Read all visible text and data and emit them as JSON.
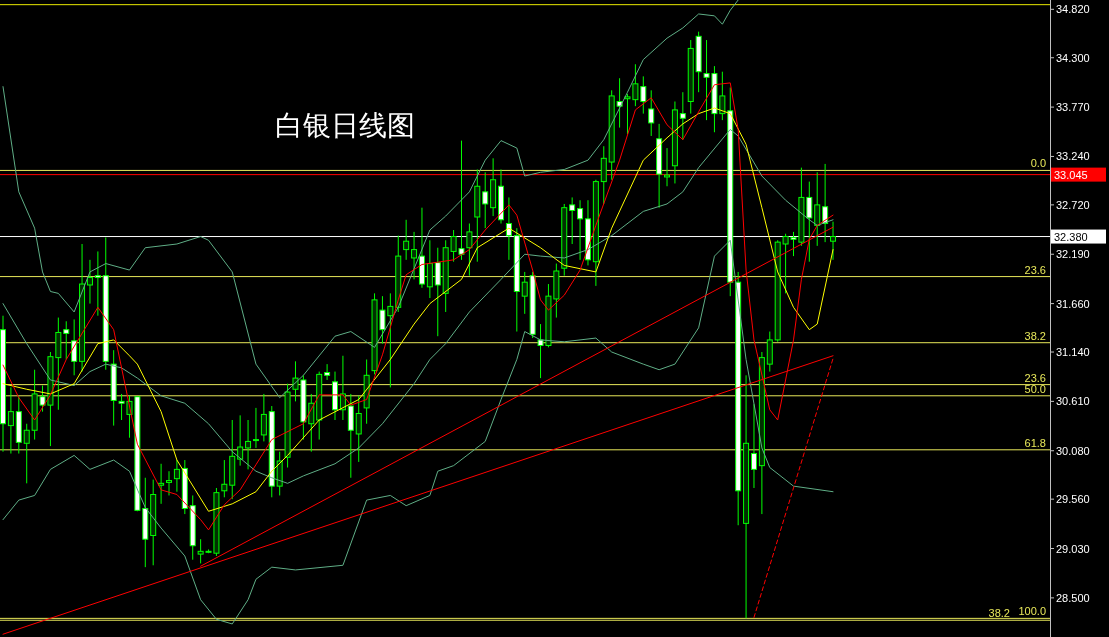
{
  "chart_data": {
    "type": "candlestick",
    "title": "白银日线图",
    "categories": [
      null,
      null,
      null,
      null,
      null,
      null,
      null,
      null,
      null,
      null,
      null,
      null,
      null,
      null,
      null,
      null,
      null,
      null,
      null,
      null,
      null,
      null,
      null,
      null,
      null,
      null,
      null,
      null,
      null,
      null,
      null,
      null,
      null,
      null,
      null,
      null,
      null,
      null,
      null,
      null,
      null,
      null,
      null,
      null,
      null,
      null,
      null,
      null,
      null,
      null,
      null,
      null,
      null,
      null,
      null,
      null,
      null,
      null,
      null,
      null,
      null,
      null,
      null,
      null,
      null,
      null,
      null,
      null,
      null,
      null,
      null,
      null,
      null,
      null,
      null,
      null,
      null,
      null,
      null,
      null,
      null,
      null,
      null,
      null,
      null,
      null,
      null,
      null,
      null,
      null,
      null,
      null,
      null,
      null,
      null,
      null,
      null,
      null,
      null,
      null,
      null,
      null,
      null,
      null,
      null,
      null
    ],
    "ylim": [
      28.08,
      34.92
    ],
    "yticks": [
      {
        "value": 34.82,
        "label": "34.820"
      },
      {
        "value": 34.3,
        "label": "34.300"
      },
      {
        "value": 33.77,
        "label": "33.770"
      },
      {
        "value": 33.24,
        "label": "33.240"
      },
      {
        "value": 32.72,
        "label": "32.720"
      },
      {
        "value": 32.19,
        "label": "32.190"
      },
      {
        "value": 31.66,
        "label": "31.660"
      },
      {
        "value": 31.14,
        "label": "31.140"
      },
      {
        "value": 30.61,
        "label": "30.610"
      },
      {
        "value": 30.08,
        "label": "30.080"
      },
      {
        "value": 29.56,
        "label": "29.560"
      },
      {
        "value": 29.03,
        "label": "29.030"
      },
      {
        "value": 28.5,
        "label": "28.500"
      }
    ],
    "tick_labels": "y",
    "grid": false,
    "series": [
      {
        "color": "#00ff00",
        "ohlc": [
          [
            31.38,
            31.53,
            30.07,
            30.37
          ],
          [
            30.35,
            30.76,
            30.05,
            30.5
          ],
          [
            30.5,
            30.67,
            30.05,
            30.17
          ],
          [
            30.16,
            30.37,
            29.73,
            30.3
          ],
          [
            30.3,
            30.95,
            30.2,
            30.69
          ],
          [
            30.66,
            30.78,
            30.5,
            30.57
          ],
          [
            30.57,
            31.14,
            30.13,
            31.09
          ],
          [
            31.08,
            31.51,
            30.52,
            31.35
          ],
          [
            31.38,
            31.47,
            31.06,
            31.34
          ],
          [
            31.26,
            31.49,
            30.89,
            31.04
          ],
          [
            31.04,
            32.3,
            30.93,
            31.87
          ],
          [
            31.86,
            32.13,
            31.66,
            31.94
          ],
          [
            31.96,
            32.22,
            31.53,
            31.94
          ],
          [
            31.96,
            32.37,
            30.95,
            31.04
          ],
          [
            31.01,
            31.16,
            30.35,
            30.62
          ],
          [
            30.61,
            30.69,
            30.41,
            30.59
          ],
          [
            30.47,
            30.67,
            30.22,
            30.61
          ],
          [
            30.66,
            30.66,
            29.43,
            29.44
          ],
          [
            29.46,
            29.79,
            28.83,
            29.13
          ],
          [
            29.17,
            29.77,
            28.85,
            29.61
          ],
          [
            29.71,
            29.94,
            29.51,
            29.73
          ],
          [
            29.74,
            29.86,
            29.6,
            29.76
          ],
          [
            29.78,
            29.98,
            29.64,
            29.88
          ],
          [
            29.89,
            29.98,
            29.4,
            29.46
          ],
          [
            29.49,
            29.6,
            28.91,
            29.06
          ],
          [
            28.97,
            29.13,
            28.87,
            29.0
          ],
          [
            29.0,
            29.02,
            28.98,
            29.0
          ],
          [
            28.98,
            29.68,
            28.95,
            29.63
          ],
          [
            29.65,
            29.98,
            29.58,
            29.72
          ],
          [
            29.71,
            30.41,
            29.56,
            30.02
          ],
          [
            29.99,
            30.46,
            29.92,
            30.12
          ],
          [
            30.11,
            30.41,
            29.88,
            30.18
          ],
          [
            30.19,
            30.54,
            30.11,
            30.2
          ],
          [
            30.25,
            30.69,
            30.18,
            30.47
          ],
          [
            30.5,
            30.56,
            29.58,
            29.7
          ],
          [
            29.7,
            30.07,
            29.6,
            29.97
          ],
          [
            30.01,
            30.8,
            29.9,
            30.71
          ],
          [
            30.74,
            31.04,
            30.61,
            30.86
          ],
          [
            30.84,
            30.89,
            30.2,
            30.39
          ],
          [
            30.37,
            30.69,
            30.07,
            30.59
          ],
          [
            30.41,
            30.93,
            30.2,
            30.9
          ],
          [
            30.92,
            31.01,
            30.84,
            30.89
          ],
          [
            30.82,
            30.93,
            30.41,
            30.52
          ],
          [
            30.52,
            31.1,
            30.41,
            30.69
          ],
          [
            30.56,
            30.69,
            29.79,
            30.3
          ],
          [
            30.26,
            30.67,
            29.96,
            30.48
          ],
          [
            30.54,
            31.06,
            30.37,
            30.89
          ],
          [
            30.94,
            31.77,
            30.9,
            31.7
          ],
          [
            31.59,
            31.74,
            31.23,
            31.38
          ],
          [
            31.53,
            31.77,
            30.76,
            31.63
          ],
          [
            31.62,
            32.39,
            31.57,
            32.17
          ],
          [
            32.24,
            32.56,
            32.13,
            32.33
          ],
          [
            32.15,
            32.43,
            31.92,
            32.24
          ],
          [
            32.17,
            32.69,
            31.83,
            31.87
          ],
          [
            31.84,
            32.34,
            31.72,
            32.09
          ],
          [
            32.1,
            32.26,
            31.31,
            31.86
          ],
          [
            31.77,
            32.34,
            31.57,
            32.26
          ],
          [
            32.22,
            32.45,
            32.11,
            32.38
          ],
          [
            32.25,
            33.41,
            32.13,
            32.19
          ],
          [
            32.26,
            32.52,
            31.96,
            32.43
          ],
          [
            32.59,
            33.1,
            32.11,
            32.92
          ],
          [
            32.86,
            33.07,
            32.47,
            32.73
          ],
          [
            32.69,
            33.22,
            32.6,
            32.99
          ],
          [
            32.92,
            33.1,
            32.52,
            32.56
          ],
          [
            32.52,
            32.8,
            32.13,
            32.39
          ],
          [
            32.39,
            32.47,
            31.36,
            31.79
          ],
          [
            31.74,
            32.0,
            31.55,
            31.89
          ],
          [
            31.96,
            32.0,
            31.29,
            31.33
          ],
          [
            31.27,
            31.44,
            30.86,
            31.21
          ],
          [
            31.21,
            31.87,
            31.19,
            31.74
          ],
          [
            31.71,
            32.09,
            31.51,
            32.01
          ],
          [
            32.04,
            32.73,
            31.96,
            32.69
          ],
          [
            32.72,
            32.8,
            32.3,
            32.66
          ],
          [
            32.68,
            32.77,
            32.13,
            32.57
          ],
          [
            32.57,
            32.77,
            32.07,
            32.13
          ],
          [
            32.11,
            32.99,
            31.85,
            32.97
          ],
          [
            32.97,
            33.35,
            32.73,
            33.22
          ],
          [
            33.18,
            33.95,
            32.99,
            33.89
          ],
          [
            33.83,
            34.08,
            33.55,
            33.78
          ],
          [
            33.86,
            33.91,
            33.48,
            33.88
          ],
          [
            33.85,
            34.23,
            33.78,
            34.02
          ],
          [
            33.99,
            34.1,
            33.7,
            33.83
          ],
          [
            33.75,
            33.95,
            33.46,
            33.6
          ],
          [
            33.43,
            33.59,
            32.69,
            33.05
          ],
          [
            33.02,
            33.33,
            32.92,
            33.04
          ],
          [
            33.14,
            33.83,
            32.95,
            33.74
          ],
          [
            33.7,
            33.93,
            33.42,
            33.65
          ],
          [
            33.83,
            34.49,
            33.7,
            34.4
          ],
          [
            34.53,
            34.58,
            33.93,
            34.15
          ],
          [
            34.13,
            34.49,
            33.63,
            34.09
          ],
          [
            34.13,
            34.21,
            33.5,
            33.7
          ],
          [
            33.7,
            34.15,
            33.63,
            33.89
          ],
          [
            33.73,
            33.98,
            31.74,
            31.89
          ],
          [
            31.89,
            32.0,
            29.28,
            29.65
          ],
          [
            29.3,
            30.89,
            28.28,
            30.16
          ],
          [
            30.05,
            30.58,
            29.68,
            29.88
          ],
          [
            29.92,
            31.14,
            29.4,
            31.08
          ],
          [
            31.01,
            31.36,
            30.93,
            31.27
          ],
          [
            31.27,
            32.34,
            31.25,
            32.32
          ],
          [
            32.3,
            32.41,
            31.77,
            32.38
          ],
          [
            32.37,
            32.43,
            32.17,
            32.35
          ],
          [
            32.32,
            33.12,
            32.28,
            32.8
          ],
          [
            32.8,
            32.97,
            32.11,
            32.58
          ],
          [
            32.5,
            33.07,
            32.28,
            32.72
          ],
          [
            32.7,
            33.16,
            32.32,
            32.52
          ],
          [
            32.33,
            32.54,
            32.13,
            32.38
          ]
        ]
      },
      {
        "type": "line",
        "color": "#5fae86",
        "values": [
          33.99,
          null,
          32.86,
          null,
          32.47,
          32.0,
          31.79,
          31.77,
          null,
          31.57,
          null,
          32.0,
          null,
          32.09,
          null,
          null,
          32.02,
          null,
          32.26,
          null,
          null,
          null,
          32.3,
          null,
          null,
          32.38,
          32.34,
          null,
          null,
          32.0,
          null,
          null,
          31.01,
          null,
          null,
          30.65,
          null,
          null,
          30.89,
          null,
          null,
          null,
          31.31,
          null,
          31.36,
          null,
          null,
          31.19,
          null,
          null,
          31.62,
          null,
          null,
          null,
          32.45,
          null,
          32.6,
          null,
          null,
          32.86,
          null,
          33.2,
          null,
          33.41,
          null,
          33.33,
          33.03,
          null,
          33.07,
          null,
          null,
          33.1,
          null,
          null,
          33.2,
          null,
          33.42,
          null,
          null,
          33.93,
          null,
          34.28,
          null,
          null,
          34.51,
          null,
          34.62,
          null,
          34.77,
          null,
          34.75,
          34.66,
          34.81,
          34.92,
          null,
          null,
          null,
          null,
          null,
          null,
          null,
          null,
          null,
          null,
          null,
          null
        ]
      },
      {
        "type": "line",
        "color": "#5fae86",
        "values": [
          31.66,
          null,
          null,
          31.23,
          null,
          null,
          30.84,
          null,
          null,
          30.78,
          null,
          30.93,
          null,
          31.01,
          null,
          30.97,
          null,
          30.86,
          null,
          null,
          30.67,
          null,
          null,
          30.59,
          null,
          null,
          30.37,
          null,
          null,
          30.07,
          null,
          null,
          29.86,
          null,
          29.79,
          null,
          29.73,
          null,
          29.81,
          null,
          null,
          null,
          29.94,
          null,
          null,
          30.11,
          null,
          null,
          30.37,
          null,
          null,
          null,
          30.8,
          null,
          31.06,
          null,
          31.23,
          null,
          null,
          31.57,
          null,
          null,
          null,
          31.92,
          null,
          null,
          32.19,
          null,
          32.17,
          null,
          null,
          32.15,
          null,
          null,
          32.24,
          null,
          null,
          32.39,
          null,
          null,
          null,
          32.65,
          null,
          null,
          32.73,
          null,
          32.86,
          null,
          33.12,
          null,
          null,
          null,
          33.53,
          33.46,
          null,
          null,
          33.03,
          null,
          null,
          32.77,
          null,
          null,
          32.56,
          32.5,
          null,
          32.56
        ]
      },
      {
        "type": "line",
        "color": "#5fae86",
        "values": [
          29.34,
          null,
          29.55,
          null,
          29.6,
          null,
          29.88,
          null,
          null,
          30.03,
          null,
          29.88,
          null,
          null,
          29.98,
          null,
          29.86,
          null,
          29.47,
          null,
          29.25,
          null,
          null,
          28.95,
          null,
          28.48,
          null,
          28.27,
          null,
          28.22,
          null,
          28.48,
          28.7,
          null,
          28.83,
          null,
          null,
          28.8,
          null,
          null,
          null,
          null,
          null,
          28.85,
          null,
          null,
          29.55,
          null,
          null,
          29.6,
          null,
          29.49,
          null,
          null,
          29.6,
          29.86,
          null,
          29.92,
          null,
          null,
          null,
          30.18,
          null,
          30.63,
          null,
          31.06,
          31.36,
          null,
          31.27,
          null,
          null,
          31.25,
          null,
          null,
          null,
          31.29,
          null,
          31.14,
          null,
          null,
          null,
          31.01,
          null,
          30.95,
          null,
          31.01,
          null,
          null,
          31.4,
          null,
          32.17,
          null,
          32.34,
          null,
          31.06,
          null,
          30.11,
          29.9,
          null,
          null,
          29.7,
          null,
          null,
          null,
          null,
          29.64
        ]
      },
      {
        "type": "line",
        "color": "#ffff00",
        "values": [
          30.8,
          null,
          null,
          30.74,
          null,
          null,
          30.69,
          null,
          null,
          30.8,
          null,
          null,
          31.23,
          null,
          31.27,
          null,
          31.1,
          31.01,
          null,
          null,
          30.5,
          null,
          29.98,
          null,
          null,
          null,
          29.43,
          null,
          null,
          29.51,
          null,
          null,
          29.64,
          null,
          29.86,
          null,
          30.03,
          null,
          null,
          null,
          30.41,
          null,
          null,
          null,
          null,
          30.63,
          null,
          null,
          null,
          31.06,
          null,
          null,
          31.44,
          null,
          31.66,
          null,
          null,
          null,
          31.92,
          null,
          32.26,
          null,
          null,
          null,
          32.47,
          null,
          null,
          null,
          32.26,
          null,
          null,
          32.07,
          null,
          null,
          null,
          32.0,
          null,
          32.47,
          null,
          null,
          null,
          33.2,
          null,
          null,
          33.44,
          null,
          33.59,
          null,
          33.7,
          null,
          33.76,
          null,
          33.7,
          null,
          33.37,
          null,
          32.69,
          null,
          32.0,
          null,
          31.62,
          null,
          31.38,
          31.44,
          null,
          32.24
        ]
      },
      {
        "type": "line",
        "color": "#ff0000",
        "values": [
          31.0,
          null,
          30.65,
          null,
          30.41,
          null,
          30.68,
          null,
          31.06,
          null,
          null,
          null,
          31.62,
          null,
          31.38,
          null,
          null,
          30.15,
          null,
          null,
          29.66,
          null,
          29.61,
          null,
          null,
          29.34,
          29.23,
          null,
          29.5,
          null,
          29.66,
          null,
          29.93,
          null,
          30.2,
          null,
          null,
          null,
          30.37,
          null,
          30.68,
          null,
          null,
          30.68,
          30.57,
          null,
          30.63,
          null,
          31.11,
          null,
          31.7,
          31.97,
          null,
          32.08,
          null,
          null,
          null,
          32.13,
          null,
          32.24,
          null,
          32.45,
          null,
          null,
          32.72,
          32.61,
          null,
          32.02,
          31.7,
          31.59,
          null,
          31.75,
          null,
          32.02,
          null,
          32.5,
          null,
          null,
          33.2,
          null,
          33.74,
          null,
          33.87,
          null,
          33.58,
          null,
          33.42,
          null,
          33.72,
          null,
          34.01,
          null,
          34.03,
          33.53,
          32.02,
          31.27,
          null,
          30.52,
          30.41,
          null,
          31.27,
          31.92,
          32.35,
          32.5,
          null,
          32.61
        ]
      },
      {
        "type": "line",
        "color": "#ff0000",
        "values": [
          28.11,
          null,
          null,
          null,
          null,
          null,
          null,
          null,
          null,
          null,
          null,
          null,
          null,
          null,
          null,
          null,
          null,
          null,
          null,
          null,
          null,
          null,
          null,
          null,
          null,
          null,
          null,
          null,
          null,
          null,
          null,
          null,
          null,
          null,
          null,
          null,
          null,
          null,
          null,
          null,
          null,
          null,
          null,
          null,
          null,
          null,
          null,
          null,
          null,
          null,
          null,
          null,
          null,
          null,
          null,
          null,
          null,
          null,
          null,
          null,
          null,
          null,
          null,
          null,
          null,
          null,
          null,
          null,
          null,
          null,
          null,
          null,
          null,
          null,
          null,
          null,
          null,
          null,
          null,
          null,
          null,
          null,
          null,
          null,
          null,
          null,
          null,
          null,
          null,
          null,
          null,
          null,
          null,
          null,
          null,
          null,
          null,
          null,
          null,
          null,
          null,
          null,
          null,
          null,
          null,
          31.1
        ]
      },
      {
        "type": "line",
        "color": "#ff0000",
        "values": [
          null,
          null,
          null,
          null,
          null,
          null,
          null,
          null,
          null,
          null,
          null,
          null,
          null,
          null,
          null,
          null,
          null,
          null,
          null,
          null,
          null,
          null,
          null,
          null,
          null,
          28.84,
          null,
          null,
          null,
          null,
          null,
          null,
          null,
          null,
          null,
          null,
          null,
          null,
          null,
          null,
          null,
          null,
          null,
          null,
          null,
          null,
          null,
          null,
          null,
          null,
          null,
          null,
          null,
          null,
          null,
          null,
          null,
          null,
          null,
          null,
          null,
          null,
          null,
          null,
          null,
          null,
          null,
          null,
          null,
          null,
          null,
          null,
          null,
          null,
          null,
          null,
          null,
          null,
          null,
          null,
          null,
          null,
          null,
          null,
          null,
          null,
          null,
          null,
          null,
          null,
          null,
          null,
          null,
          null,
          null,
          null,
          null,
          null,
          null,
          null,
          null,
          null,
          null,
          null,
          null,
          32.48
        ]
      },
      {
        "type": "line",
        "color": "#ff0000",
        "line_style": "dashed",
        "values": [
          null,
          null,
          null,
          null,
          null,
          null,
          null,
          null,
          null,
          null,
          null,
          null,
          null,
          null,
          null,
          null,
          null,
          null,
          null,
          null,
          null,
          null,
          null,
          null,
          null,
          null,
          null,
          null,
          null,
          null,
          null,
          null,
          null,
          null,
          null,
          null,
          null,
          null,
          null,
          null,
          null,
          null,
          null,
          null,
          null,
          null,
          null,
          null,
          null,
          null,
          null,
          null,
          null,
          null,
          null,
          null,
          null,
          null,
          null,
          null,
          null,
          null,
          null,
          null,
          null,
          null,
          null,
          null,
          null,
          null,
          null,
          null,
          null,
          null,
          null,
          null,
          null,
          null,
          null,
          null,
          null,
          null,
          null,
          null,
          null,
          null,
          null,
          null,
          null,
          null,
          null,
          null,
          null,
          null,
          null,
          28.29,
          null,
          null,
          null,
          null,
          null,
          null,
          null,
          null,
          null,
          31.07
        ]
      }
    ],
    "ref_lines": [
      {
        "axis": "y",
        "value": 34.87,
        "color": "#e8e800"
      },
      {
        "axis": "y",
        "value": 33.09,
        "color": "#e8e85a"
      },
      {
        "axis": "y",
        "value": 33.045,
        "label": "33.045",
        "color": "#ff0000"
      },
      {
        "axis": "y",
        "value": 32.38,
        "label": "32.380",
        "color": "#ffffff"
      },
      {
        "axis": "y",
        "value": 31.95,
        "color": "#e8e85a"
      },
      {
        "axis": "y",
        "value": 31.24,
        "color": "#e8e85a"
      },
      {
        "axis": "y",
        "value": 30.79,
        "color": "#e8e85a"
      },
      {
        "axis": "y",
        "value": 30.67,
        "color": "#e8e85a"
      },
      {
        "axis": "y",
        "value": 30.09,
        "color": "#e8e85a"
      },
      {
        "axis": "y",
        "value": 28.28,
        "color": "#e8e85a"
      },
      {
        "axis": "y",
        "value": 28.26,
        "color": "#e8e85a"
      }
    ],
    "annotations": [
      {
        "text": "0.0",
        "y": 33.09
      },
      {
        "text": "23.6",
        "y": 31.95
      },
      {
        "text": "38.2",
        "y": 31.24
      },
      {
        "text": "23.6",
        "y": 30.79
      },
      {
        "text": "50.0",
        "y": 30.67
      },
      {
        "text": "61.8",
        "y": 30.09
      },
      {
        "text": "100.0",
        "y": 28.28
      },
      {
        "text": "38.2",
        "y": 28.26
      }
    ]
  }
}
